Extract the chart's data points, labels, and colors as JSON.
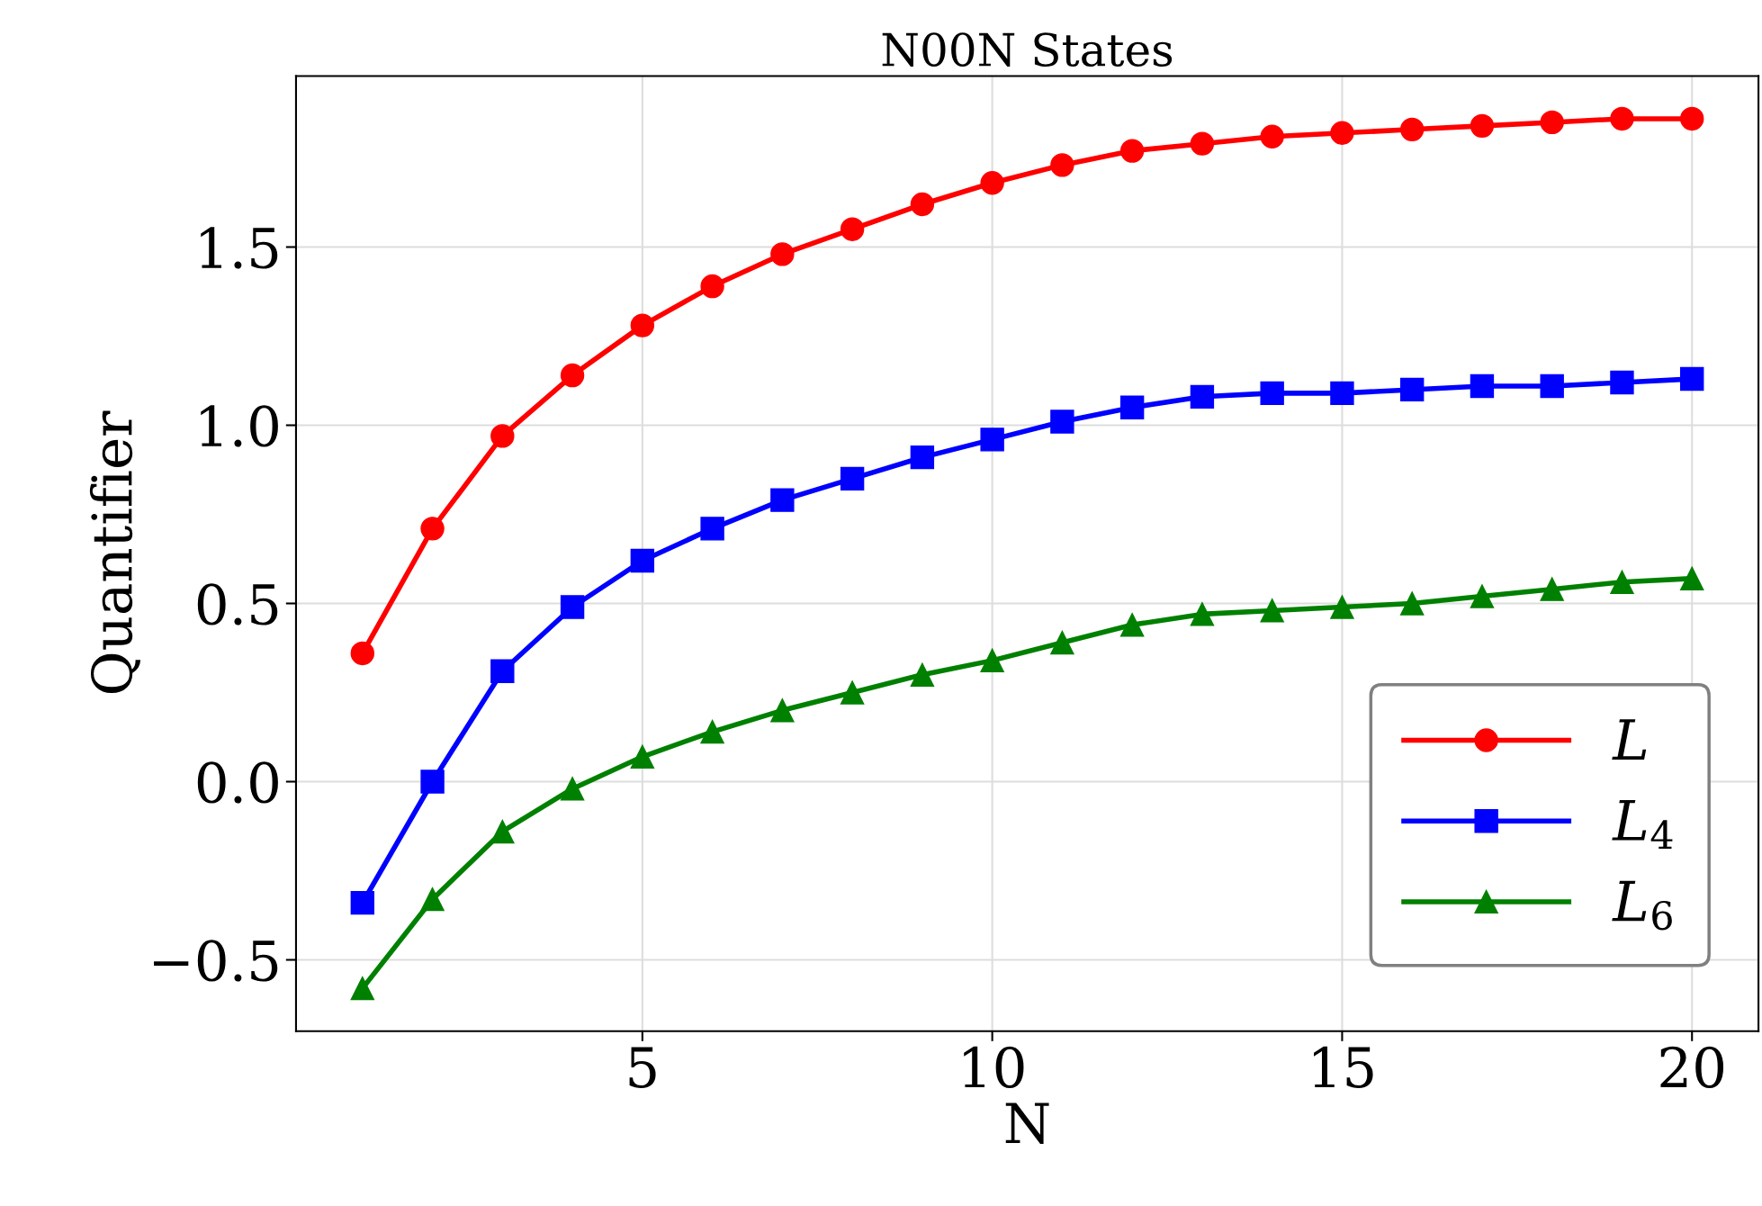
{
  "chart_data": {
    "type": "line",
    "title": "N00N States",
    "xlabel": "N",
    "ylabel": "Quantifier",
    "x": [
      1,
      2,
      3,
      4,
      5,
      6,
      7,
      8,
      9,
      10,
      11,
      12,
      13,
      14,
      15,
      16,
      17,
      18,
      19,
      20
    ],
    "series": [
      {
        "name": "L",
        "color": "#ff0000",
        "marker": "circle",
        "values": [
          0.36,
          0.71,
          0.97,
          1.14,
          1.28,
          1.39,
          1.48,
          1.55,
          1.62,
          1.68,
          1.73,
          1.77,
          1.79,
          1.81,
          1.82,
          1.83,
          1.84,
          1.85,
          1.86,
          1.86
        ]
      },
      {
        "name": "L$_{4}$",
        "color": "#0000ff",
        "marker": "square",
        "values": [
          -0.34,
          0.0,
          0.31,
          0.49,
          0.62,
          0.71,
          0.79,
          0.85,
          0.91,
          0.96,
          1.01,
          1.05,
          1.08,
          1.09,
          1.09,
          1.1,
          1.11,
          1.11,
          1.12,
          1.13
        ]
      },
      {
        "name": "L$_{6}$",
        "color": "#008000",
        "marker": "triangle",
        "values": [
          -0.58,
          -0.33,
          -0.14,
          -0.02,
          0.07,
          0.14,
          0.2,
          0.25,
          0.3,
          0.34,
          0.39,
          0.44,
          0.47,
          0.48,
          0.49,
          0.5,
          0.52,
          0.54,
          0.56,
          0.57
        ]
      }
    ],
    "xlim": [
      0.05,
      20.95
    ],
    "ylim": [
      -0.7,
      1.98
    ],
    "xticks": [
      5,
      10,
      15,
      20
    ],
    "yticks": [
      {
        "value": -0.5,
        "label": "−0.5"
      },
      {
        "value": 0.0,
        "label": "0.0"
      },
      {
        "value": 0.5,
        "label": "0.5"
      },
      {
        "value": 1.0,
        "label": "1.0"
      },
      {
        "value": 1.5,
        "label": "1.5"
      }
    ],
    "grid": true,
    "legend": "bottom right",
    "line_style": "solid"
  }
}
